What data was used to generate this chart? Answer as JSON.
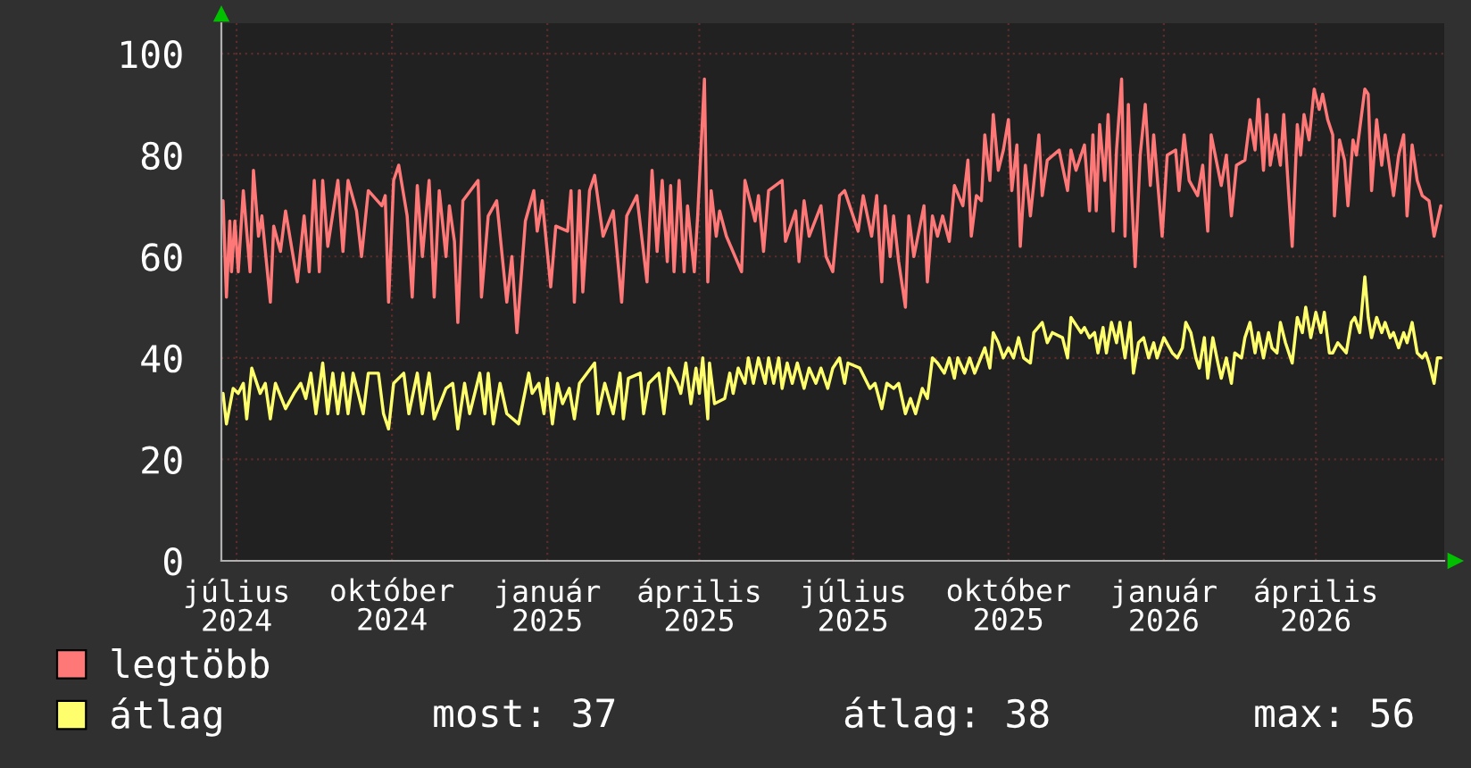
{
  "chart_data": {
    "type": "line",
    "line_style": "solid",
    "grid": true,
    "legend": "bottom left",
    "xlim": [
      "2024-06-22",
      "2026-06-16"
    ],
    "xticks": [
      {
        "value": "2024-07-01",
        "label": "július 2024"
      },
      {
        "value": "2024-10-01",
        "label": "október 2024"
      },
      {
        "value": "2025-01-01",
        "label": "január 2025"
      },
      {
        "value": "2025-04-01",
        "label": "április 2025"
      },
      {
        "value": "2025-07-01",
        "label": "július 2025"
      },
      {
        "value": "2025-10-01",
        "label": "október 2025"
      },
      {
        "value": "2026-01-01",
        "label": "január 2026"
      },
      {
        "value": "2026-04-01",
        "label": "április 2026"
      }
    ],
    "ylim": [
      0,
      106
    ],
    "yticks": [
      0,
      20,
      40,
      60,
      80,
      100
    ],
    "series": [
      {
        "name": "legtöbb",
        "color": "#ff7878",
        "x": [
          "2024-06-23",
          "2024-06-25",
          "2024-06-27",
          "2024-06-28",
          "2024-06-30",
          "2024-07-02",
          "2024-07-05",
          "2024-07-09",
          "2024-07-11",
          "2024-07-14",
          "2024-07-16",
          "2024-07-21",
          "2024-07-23",
          "2024-07-27",
          "2024-07-30",
          "2024-08-06",
          "2024-08-10",
          "2024-08-13",
          "2024-08-16",
          "2024-08-19",
          "2024-08-21",
          "2024-08-24",
          "2024-08-30",
          "2024-09-02",
          "2024-09-05",
          "2024-09-10",
          "2024-09-13",
          "2024-09-17",
          "2024-09-25",
          "2024-09-27",
          "2024-09-29",
          "2024-10-02",
          "2024-10-05",
          "2024-10-10",
          "2024-10-13",
          "2024-10-16",
          "2024-10-19",
          "2024-10-23",
          "2024-10-26",
          "2024-10-29",
          "2024-11-02",
          "2024-11-04",
          "2024-11-07",
          "2024-11-09",
          "2024-11-12",
          "2024-11-21",
          "2024-11-23",
          "2024-11-27",
          "2024-12-02",
          "2024-12-08",
          "2024-12-11",
          "2024-12-14",
          "2024-12-19",
          "2024-12-24",
          "2024-12-26",
          "2024-12-29",
          "2025-01-03",
          "2025-01-06",
          "2025-01-13",
          "2025-01-15",
          "2025-01-17",
          "2025-01-20",
          "2025-01-22",
          "2025-01-26",
          "2025-01-29",
          "2025-02-03",
          "2025-02-09",
          "2025-02-14",
          "2025-02-17",
          "2025-02-23",
          "2025-03-01",
          "2025-03-04",
          "2025-03-07",
          "2025-03-10",
          "2025-03-13",
          "2025-03-15",
          "2025-03-17",
          "2025-03-20",
          "2025-03-23",
          "2025-03-25",
          "2025-03-29",
          "2025-03-31",
          "2025-04-04",
          "2025-04-06",
          "2025-04-08",
          "2025-04-11",
          "2025-04-13",
          "2025-04-17",
          "2025-04-26",
          "2025-04-28",
          "2025-05-04",
          "2025-05-06",
          "2025-05-09",
          "2025-05-12",
          "2025-05-20",
          "2025-05-22",
          "2025-05-28",
          "2025-05-30",
          "2025-06-02",
          "2025-06-05",
          "2025-06-12",
          "2025-06-15",
          "2025-06-19",
          "2025-06-23",
          "2025-06-26",
          "2025-07-04",
          "2025-07-07",
          "2025-07-12",
          "2025-07-15",
          "2025-07-18",
          "2025-07-20",
          "2025-07-23",
          "2025-07-25",
          "2025-07-28",
          "2025-08-01",
          "2025-08-03",
          "2025-08-06",
          "2025-08-12",
          "2025-08-14",
          "2025-08-17",
          "2025-08-20",
          "2025-08-23",
          "2025-08-27",
          "2025-08-30",
          "2025-09-04",
          "2025-09-07",
          "2025-09-09",
          "2025-09-12",
          "2025-09-15",
          "2025-09-17",
          "2025-09-20",
          "2025-09-22",
          "2025-09-25",
          "2025-09-28",
          "2025-10-01",
          "2025-10-03",
          "2025-10-06",
          "2025-10-08",
          "2025-10-11",
          "2025-10-14",
          "2025-10-19",
          "2025-10-21",
          "2025-10-24",
          "2025-10-31",
          "2025-11-05",
          "2025-11-07",
          "2025-11-10",
          "2025-11-15",
          "2025-11-18",
          "2025-11-20",
          "2025-11-22",
          "2025-11-24",
          "2025-11-27",
          "2025-11-29",
          "2025-12-02",
          "2025-12-04",
          "2025-12-07",
          "2025-12-09",
          "2025-12-11",
          "2025-12-13",
          "2025-12-15",
          "2025-12-18",
          "2025-12-21",
          "2025-12-24",
          "2025-12-26",
          "2025-12-31",
          "2026-01-03",
          "2026-01-08",
          "2026-01-10",
          "2026-01-13",
          "2026-01-16",
          "2026-01-21",
          "2026-01-24",
          "2026-01-27",
          "2026-01-29",
          "2026-02-04",
          "2026-02-07",
          "2026-02-10",
          "2026-02-13",
          "2026-02-18",
          "2026-02-21",
          "2026-02-24",
          "2026-02-26",
          "2026-03-01",
          "2026-03-03",
          "2026-03-05",
          "2026-03-08",
          "2026-03-11",
          "2026-03-13",
          "2026-03-16",
          "2026-03-18",
          "2026-03-21",
          "2026-03-23",
          "2026-03-25",
          "2026-03-28",
          "2026-03-31",
          "2026-04-03",
          "2026-04-05",
          "2026-04-08",
          "2026-04-11",
          "2026-04-12",
          "2026-04-15",
          "2026-04-18",
          "2026-04-20",
          "2026-04-23",
          "2026-04-25",
          "2026-04-30",
          "2026-05-02",
          "2026-05-04",
          "2026-05-07",
          "2026-05-10",
          "2026-05-12",
          "2026-05-17",
          "2026-05-20",
          "2026-05-23",
          "2026-05-25",
          "2026-05-28",
          "2026-05-31",
          "2026-06-03",
          "2026-06-07",
          "2026-06-10",
          "2026-06-12",
          "2026-06-14"
        ],
        "values": [
          71,
          52,
          67,
          57,
          67,
          57,
          73,
          57,
          77,
          64,
          68,
          51,
          66,
          61,
          69,
          55,
          68,
          57,
          75,
          57,
          75,
          62,
          75,
          61,
          75,
          69,
          60,
          73,
          70,
          72,
          51,
          75,
          78,
          68,
          52,
          74,
          60,
          75,
          52,
          73,
          60,
          70,
          63,
          47,
          71,
          75,
          52,
          68,
          71,
          51,
          60,
          45,
          67,
          73,
          65,
          71,
          54,
          66,
          65,
          73,
          51,
          73,
          53,
          73,
          76,
          64,
          69,
          51,
          68,
          72,
          55,
          77,
          61,
          75,
          59,
          74,
          57,
          75,
          57,
          70,
          57,
          68,
          95,
          55,
          73,
          64,
          69,
          64,
          57,
          75,
          67,
          72,
          61,
          73,
          75,
          63,
          69,
          59,
          71,
          64,
          70,
          60,
          57,
          72,
          73,
          65,
          72,
          64,
          72,
          55,
          70,
          60,
          68,
          59,
          50,
          68,
          60,
          70,
          55,
          68,
          64,
          68,
          63,
          74,
          70,
          79,
          64,
          72,
          71,
          84,
          75,
          88,
          77,
          81,
          87,
          73,
          82,
          62,
          78,
          68,
          84,
          72,
          79,
          81,
          73,
          81,
          77,
          82,
          69,
          84,
          69,
          86,
          75,
          88,
          65,
          81,
          95,
          64,
          90,
          72,
          58,
          80,
          90,
          74,
          84,
          64,
          80,
          81,
          73,
          84,
          75,
          72,
          78,
          65,
          84,
          74,
          80,
          68,
          78,
          79,
          87,
          81,
          91,
          77,
          88,
          78,
          84,
          78,
          88,
          72,
          62,
          86,
          80,
          88,
          83,
          93,
          89,
          92,
          87,
          84,
          68,
          83,
          79,
          70,
          83,
          80,
          93,
          92,
          73,
          87,
          78,
          84,
          72,
          80,
          84,
          68,
          82,
          75,
          72,
          71,
          64,
          67,
          70
        ]
      },
      {
        "name": "átlag",
        "color": "#ffff6e",
        "x": [
          "2024-06-23",
          "2024-06-25",
          "2024-06-29",
          "2024-07-02",
          "2024-07-05",
          "2024-07-07",
          "2024-07-10",
          "2024-07-15",
          "2024-07-18",
          "2024-07-21",
          "2024-07-24",
          "2024-07-30",
          "2024-08-04",
          "2024-08-08",
          "2024-08-11",
          "2024-08-14",
          "2024-08-17",
          "2024-08-21",
          "2024-08-24",
          "2024-08-27",
          "2024-08-30",
          "2024-09-02",
          "2024-09-05",
          "2024-09-08",
          "2024-09-14",
          "2024-09-17",
          "2024-09-23",
          "2024-09-26",
          "2024-09-29",
          "2024-10-02",
          "2024-10-08",
          "2024-10-11",
          "2024-10-16",
          "2024-10-19",
          "2024-10-23",
          "2024-10-26",
          "2024-11-02",
          "2024-11-06",
          "2024-11-09",
          "2024-11-13",
          "2024-11-16",
          "2024-11-22",
          "2024-11-25",
          "2024-11-27",
          "2024-11-30",
          "2024-12-04",
          "2024-12-08",
          "2024-12-15",
          "2024-12-21",
          "2024-12-23",
          "2024-12-27",
          "2024-12-30",
          "2025-01-01",
          "2025-01-04",
          "2025-01-07",
          "2025-01-10",
          "2025-01-14",
          "2025-01-17",
          "2025-01-20",
          "2025-01-29",
          "2025-01-31",
          "2025-02-04",
          "2025-02-09",
          "2025-02-13",
          "2025-02-15",
          "2025-02-18",
          "2025-02-25",
          "2025-02-27",
          "2025-03-02",
          "2025-03-08",
          "2025-03-11",
          "2025-03-14",
          "2025-03-19",
          "2025-03-21",
          "2025-03-24",
          "2025-03-27",
          "2025-03-30",
          "2025-04-01",
          "2025-04-03",
          "2025-04-06",
          "2025-04-07",
          "2025-04-10",
          "2025-04-16",
          "2025-04-19",
          "2025-04-21",
          "2025-04-24",
          "2025-04-28",
          "2025-04-30",
          "2025-05-03",
          "2025-05-06",
          "2025-05-10",
          "2025-05-12",
          "2025-05-15",
          "2025-05-18",
          "2025-05-20",
          "2025-05-23",
          "2025-05-26",
          "2025-05-29",
          "2025-06-02",
          "2025-06-05",
          "2025-06-09",
          "2025-06-12",
          "2025-06-16",
          "2025-06-19",
          "2025-06-23",
          "2025-06-26",
          "2025-06-28",
          "2025-07-05",
          "2025-07-11",
          "2025-07-14",
          "2025-07-18",
          "2025-07-21",
          "2025-07-25",
          "2025-07-28",
          "2025-08-01",
          "2025-08-04",
          "2025-08-07",
          "2025-08-11",
          "2025-08-14",
          "2025-08-17",
          "2025-08-20",
          "2025-08-24",
          "2025-08-27",
          "2025-08-30",
          "2025-09-01",
          "2025-09-05",
          "2025-09-08",
          "2025-09-11",
          "2025-09-17",
          "2025-09-20",
          "2025-09-22",
          "2025-09-25",
          "2025-09-28",
          "2025-10-01",
          "2025-10-04",
          "2025-10-07",
          "2025-10-10",
          "2025-10-14",
          "2025-10-16",
          "2025-10-21",
          "2025-10-24",
          "2025-10-27",
          "2025-11-02",
          "2025-11-05",
          "2025-11-07",
          "2025-11-13",
          "2025-11-15",
          "2025-11-18",
          "2025-11-21",
          "2025-11-23",
          "2025-11-26",
          "2025-11-28",
          "2025-12-01",
          "2025-12-04",
          "2025-12-06",
          "2025-12-09",
          "2025-12-12",
          "2025-12-14",
          "2025-12-17",
          "2025-12-20",
          "2025-12-23",
          "2025-12-26",
          "2025-12-28",
          "2026-01-01",
          "2026-01-06",
          "2026-01-09",
          "2026-01-12",
          "2026-01-14",
          "2026-01-17",
          "2026-01-20",
          "2026-01-22",
          "2026-01-25",
          "2026-01-27",
          "2026-01-30",
          "2026-02-02",
          "2026-02-04",
          "2026-02-07",
          "2026-02-10",
          "2026-02-12",
          "2026-02-16",
          "2026-02-18",
          "2026-02-21",
          "2026-02-24",
          "2026-02-26",
          "2026-03-01",
          "2026-03-04",
          "2026-03-06",
          "2026-03-09",
          "2026-03-11",
          "2026-03-14",
          "2026-03-18",
          "2026-03-21",
          "2026-03-24",
          "2026-03-26",
          "2026-03-29",
          "2026-04-01",
          "2026-04-04",
          "2026-04-06",
          "2026-04-09",
          "2026-04-11",
          "2026-04-14",
          "2026-04-19",
          "2026-04-22",
          "2026-04-24",
          "2026-04-27",
          "2026-04-30",
          "2026-05-02",
          "2026-05-04",
          "2026-05-07",
          "2026-05-10",
          "2026-05-12",
          "2026-05-15",
          "2026-05-17",
          "2026-05-20",
          "2026-05-23",
          "2026-05-25",
          "2026-05-28",
          "2026-05-31",
          "2026-06-03",
          "2026-06-05",
          "2026-06-07",
          "2026-06-10",
          "2026-06-12",
          "2026-06-14"
        ],
        "values": [
          33,
          27,
          34,
          33,
          35,
          28,
          38,
          33,
          35,
          28,
          35,
          30,
          33,
          35,
          32,
          37,
          29,
          39,
          29,
          37,
          29,
          37,
          29,
          37,
          29,
          37,
          37,
          29,
          26,
          35,
          37,
          29,
          37,
          29,
          37,
          28,
          34,
          35,
          26,
          35,
          29,
          37,
          29,
          37,
          27,
          35,
          29,
          27,
          37,
          33,
          35,
          29,
          36,
          27,
          35,
          31,
          34,
          28,
          35,
          39,
          29,
          35,
          29,
          37,
          28,
          36,
          37,
          29,
          35,
          37,
          29,
          38,
          35,
          33,
          39,
          31,
          38,
          33,
          40,
          28,
          39,
          31,
          32,
          37,
          33,
          38,
          35,
          40,
          35,
          40,
          35,
          40,
          35,
          40,
          34,
          39,
          35,
          39,
          34,
          38,
          35,
          38,
          34,
          38,
          40,
          35,
          39,
          38,
          34,
          35,
          30,
          35,
          34,
          35,
          29,
          32,
          29,
          34,
          32,
          40,
          39,
          37,
          40,
          36,
          40,
          37,
          40,
          37,
          42,
          38,
          45,
          43,
          40,
          42,
          40,
          44,
          40,
          39,
          45,
          47,
          43,
          45,
          44,
          40,
          48,
          45,
          46,
          44,
          45,
          41,
          46,
          41,
          47,
          43,
          47,
          40,
          47,
          37,
          43,
          44,
          40,
          43,
          40,
          44,
          41,
          40,
          42,
          47,
          45,
          40,
          38,
          44,
          36,
          44,
          39,
          36,
          40,
          35,
          41,
          40,
          44,
          47,
          41,
          45,
          40,
          45,
          42,
          41,
          47,
          43,
          39,
          48,
          45,
          50,
          44,
          49,
          45,
          49,
          41,
          41,
          43,
          41,
          47,
          48,
          45,
          56,
          48,
          44,
          48,
          45,
          47,
          44,
          45,
          42,
          45,
          43,
          47,
          41,
          40,
          41,
          39,
          35,
          40,
          40
        ]
      }
    ],
    "annotations": [
      "most: 37",
      "átlag: 38",
      "max: 56"
    ]
  }
}
